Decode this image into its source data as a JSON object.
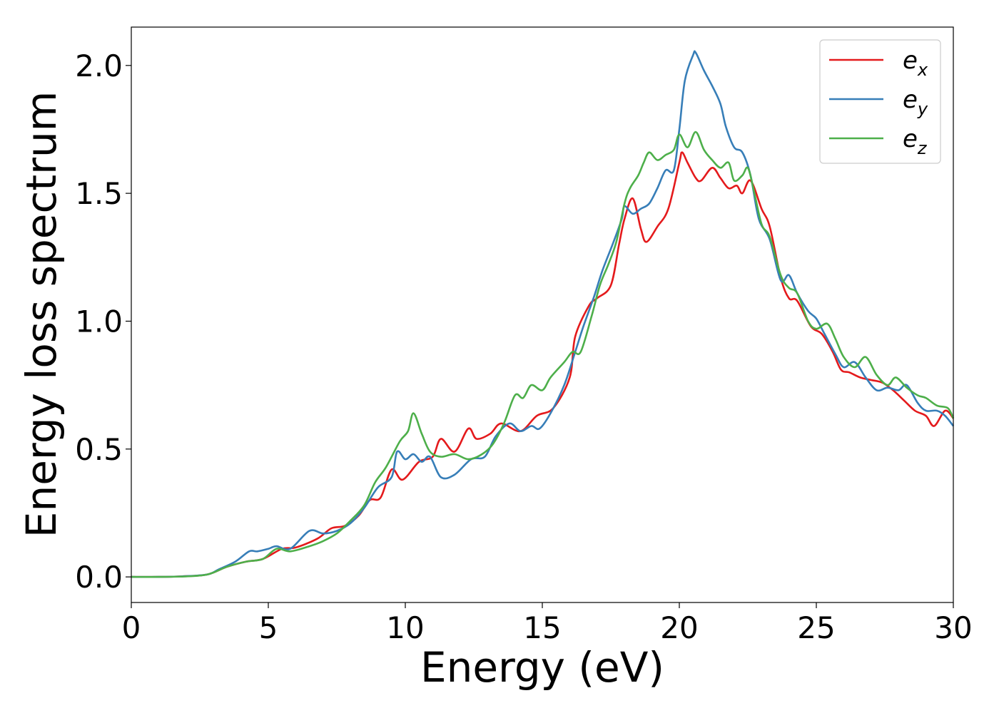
{
  "chart_data": {
    "type": "line",
    "title": "",
    "xlabel": "Energy (eV)",
    "ylabel": "Energy loss spectrum",
    "xlim": [
      0,
      30
    ],
    "ylim": [
      -0.1,
      2.15
    ],
    "xticks": [
      0,
      5,
      10,
      15,
      20,
      25,
      30
    ],
    "xtick_labels": [
      "0",
      "5",
      "10",
      "15",
      "20",
      "25",
      "30"
    ],
    "yticks": [
      0.0,
      0.5,
      1.0,
      1.5,
      2.0
    ],
    "ytick_labels": [
      "0.0",
      "0.5",
      "1.0",
      "1.5",
      "2.0"
    ],
    "grid": false,
    "legend_position": "top-right",
    "series": [
      {
        "name": "e_x",
        "label_base": "e",
        "label_sub": "x",
        "color": "#e41a1c",
        "points": [
          [
            0,
            0
          ],
          [
            1,
            0
          ],
          [
            2,
            0.003
          ],
          [
            2.8,
            0.01
          ],
          [
            3.5,
            0.04
          ],
          [
            4.2,
            0.06
          ],
          [
            4.8,
            0.07
          ],
          [
            5.5,
            0.11
          ],
          [
            6.0,
            0.115
          ],
          [
            6.8,
            0.15
          ],
          [
            7.3,
            0.19
          ],
          [
            7.8,
            0.2
          ],
          [
            8.3,
            0.24
          ],
          [
            8.7,
            0.3
          ],
          [
            9.1,
            0.31
          ],
          [
            9.5,
            0.42
          ],
          [
            9.9,
            0.38
          ],
          [
            10.5,
            0.45
          ],
          [
            11.0,
            0.47
          ],
          [
            11.3,
            0.54
          ],
          [
            11.8,
            0.49
          ],
          [
            12.3,
            0.58
          ],
          [
            12.6,
            0.54
          ],
          [
            13.1,
            0.56
          ],
          [
            13.5,
            0.6
          ],
          [
            14.2,
            0.57
          ],
          [
            14.8,
            0.63
          ],
          [
            15.4,
            0.66
          ],
          [
            16.0,
            0.78
          ],
          [
            16.2,
            0.94
          ],
          [
            16.7,
            1.06
          ],
          [
            17.0,
            1.09
          ],
          [
            17.5,
            1.14
          ],
          [
            17.8,
            1.3
          ],
          [
            18.0,
            1.4
          ],
          [
            18.3,
            1.48
          ],
          [
            18.6,
            1.36
          ],
          [
            18.8,
            1.31
          ],
          [
            19.2,
            1.37
          ],
          [
            19.6,
            1.44
          ],
          [
            20.0,
            1.62
          ],
          [
            20.1,
            1.66
          ],
          [
            20.3,
            1.62
          ],
          [
            20.6,
            1.56
          ],
          [
            20.8,
            1.55
          ],
          [
            21.2,
            1.6
          ],
          [
            21.5,
            1.56
          ],
          [
            21.8,
            1.52
          ],
          [
            22.1,
            1.53
          ],
          [
            22.3,
            1.5
          ],
          [
            22.6,
            1.55
          ],
          [
            23.0,
            1.44
          ],
          [
            23.3,
            1.37
          ],
          [
            23.7,
            1.17
          ],
          [
            24.0,
            1.09
          ],
          [
            24.3,
            1.08
          ],
          [
            24.8,
            0.98
          ],
          [
            25.2,
            0.95
          ],
          [
            25.6,
            0.88
          ],
          [
            25.9,
            0.81
          ],
          [
            26.2,
            0.8
          ],
          [
            26.6,
            0.78
          ],
          [
            27.0,
            0.77
          ],
          [
            27.4,
            0.76
          ],
          [
            27.8,
            0.73
          ],
          [
            28.2,
            0.69
          ],
          [
            28.6,
            0.65
          ],
          [
            29.0,
            0.63
          ],
          [
            29.3,
            0.59
          ],
          [
            29.7,
            0.65
          ],
          [
            30.0,
            0.62
          ]
        ]
      },
      {
        "name": "e_y",
        "label_base": "e",
        "label_sub": "y",
        "color": "#377eb8",
        "points": [
          [
            0,
            0
          ],
          [
            1,
            0
          ],
          [
            2,
            0.003
          ],
          [
            2.8,
            0.01
          ],
          [
            3.2,
            0.03
          ],
          [
            3.8,
            0.06
          ],
          [
            4.3,
            0.1
          ],
          [
            4.6,
            0.1
          ],
          [
            5.0,
            0.11
          ],
          [
            5.3,
            0.12
          ],
          [
            5.8,
            0.11
          ],
          [
            6.5,
            0.18
          ],
          [
            7.0,
            0.17
          ],
          [
            7.5,
            0.18
          ],
          [
            8.0,
            0.21
          ],
          [
            8.5,
            0.27
          ],
          [
            9.0,
            0.35
          ],
          [
            9.5,
            0.39
          ],
          [
            9.7,
            0.49
          ],
          [
            10.0,
            0.46
          ],
          [
            10.3,
            0.48
          ],
          [
            10.6,
            0.45
          ],
          [
            10.9,
            0.47
          ],
          [
            11.3,
            0.39
          ],
          [
            11.8,
            0.4
          ],
          [
            12.4,
            0.46
          ],
          [
            12.9,
            0.47
          ],
          [
            13.3,
            0.55
          ],
          [
            13.8,
            0.6
          ],
          [
            14.2,
            0.57
          ],
          [
            14.6,
            0.59
          ],
          [
            14.9,
            0.58
          ],
          [
            15.3,
            0.64
          ],
          [
            15.8,
            0.75
          ],
          [
            16.2,
            0.88
          ],
          [
            16.5,
            0.98
          ],
          [
            16.9,
            1.1
          ],
          [
            17.2,
            1.2
          ],
          [
            17.6,
            1.31
          ],
          [
            17.9,
            1.4
          ],
          [
            18.0,
            1.45
          ],
          [
            18.3,
            1.42
          ],
          [
            18.6,
            1.44
          ],
          [
            18.9,
            1.46
          ],
          [
            19.2,
            1.52
          ],
          [
            19.5,
            1.59
          ],
          [
            19.8,
            1.59
          ],
          [
            20.0,
            1.75
          ],
          [
            20.2,
            1.94
          ],
          [
            20.5,
            2.04
          ],
          [
            20.6,
            2.05
          ],
          [
            20.9,
            1.98
          ],
          [
            21.2,
            1.92
          ],
          [
            21.5,
            1.85
          ],
          [
            21.7,
            1.76
          ],
          [
            22.0,
            1.68
          ],
          [
            22.3,
            1.66
          ],
          [
            22.6,
            1.57
          ],
          [
            22.9,
            1.4
          ],
          [
            23.3,
            1.32
          ],
          [
            23.7,
            1.16
          ],
          [
            24.0,
            1.18
          ],
          [
            24.3,
            1.11
          ],
          [
            24.7,
            1.04
          ],
          [
            25.0,
            1.01
          ],
          [
            25.3,
            0.95
          ],
          [
            25.7,
            0.87
          ],
          [
            26.0,
            0.82
          ],
          [
            26.4,
            0.84
          ],
          [
            26.8,
            0.78
          ],
          [
            27.2,
            0.73
          ],
          [
            27.6,
            0.74
          ],
          [
            28.0,
            0.73
          ],
          [
            28.3,
            0.75
          ],
          [
            28.7,
            0.68
          ],
          [
            29.0,
            0.65
          ],
          [
            29.4,
            0.65
          ],
          [
            29.7,
            0.63
          ],
          [
            30.0,
            0.59
          ]
        ]
      },
      {
        "name": "e_z",
        "label_base": "e",
        "label_sub": "z",
        "color": "#4daf4a",
        "points": [
          [
            0,
            0
          ],
          [
            1,
            0
          ],
          [
            2,
            0.002
          ],
          [
            2.8,
            0.01
          ],
          [
            3.5,
            0.04
          ],
          [
            4.2,
            0.06
          ],
          [
            4.8,
            0.07
          ],
          [
            5.3,
            0.11
          ],
          [
            5.8,
            0.1
          ],
          [
            6.5,
            0.12
          ],
          [
            7.0,
            0.14
          ],
          [
            7.5,
            0.17
          ],
          [
            8.0,
            0.22
          ],
          [
            8.5,
            0.28
          ],
          [
            8.9,
            0.37
          ],
          [
            9.3,
            0.43
          ],
          [
            9.8,
            0.53
          ],
          [
            10.1,
            0.57
          ],
          [
            10.3,
            0.64
          ],
          [
            10.6,
            0.56
          ],
          [
            10.9,
            0.49
          ],
          [
            11.3,
            0.47
          ],
          [
            11.8,
            0.48
          ],
          [
            12.3,
            0.46
          ],
          [
            12.8,
            0.48
          ],
          [
            13.2,
            0.52
          ],
          [
            13.6,
            0.6
          ],
          [
            14.0,
            0.71
          ],
          [
            14.3,
            0.7
          ],
          [
            14.6,
            0.75
          ],
          [
            15.0,
            0.73
          ],
          [
            15.3,
            0.78
          ],
          [
            15.8,
            0.84
          ],
          [
            16.1,
            0.88
          ],
          [
            16.4,
            0.88
          ],
          [
            16.8,
            1.02
          ],
          [
            17.1,
            1.14
          ],
          [
            17.4,
            1.22
          ],
          [
            17.7,
            1.31
          ],
          [
            18.0,
            1.46
          ],
          [
            18.2,
            1.52
          ],
          [
            18.5,
            1.57
          ],
          [
            18.7,
            1.62
          ],
          [
            18.9,
            1.66
          ],
          [
            19.2,
            1.63
          ],
          [
            19.5,
            1.65
          ],
          [
            19.8,
            1.67
          ],
          [
            20.0,
            1.73
          ],
          [
            20.3,
            1.68
          ],
          [
            20.6,
            1.74
          ],
          [
            20.9,
            1.67
          ],
          [
            21.2,
            1.63
          ],
          [
            21.5,
            1.6
          ],
          [
            21.8,
            1.62
          ],
          [
            22.0,
            1.55
          ],
          [
            22.3,
            1.57
          ],
          [
            22.5,
            1.6
          ],
          [
            22.7,
            1.52
          ],
          [
            23.0,
            1.38
          ],
          [
            23.3,
            1.33
          ],
          [
            23.7,
            1.18
          ],
          [
            24.0,
            1.13
          ],
          [
            24.3,
            1.11
          ],
          [
            24.7,
            1.0
          ],
          [
            25.0,
            0.97
          ],
          [
            25.4,
            0.99
          ],
          [
            25.7,
            0.93
          ],
          [
            26.0,
            0.86
          ],
          [
            26.4,
            0.82
          ],
          [
            26.8,
            0.86
          ],
          [
            27.2,
            0.79
          ],
          [
            27.6,
            0.75
          ],
          [
            27.9,
            0.78
          ],
          [
            28.3,
            0.74
          ],
          [
            28.7,
            0.71
          ],
          [
            29.0,
            0.7
          ],
          [
            29.4,
            0.67
          ],
          [
            29.8,
            0.66
          ],
          [
            30.0,
            0.62
          ]
        ]
      }
    ]
  }
}
